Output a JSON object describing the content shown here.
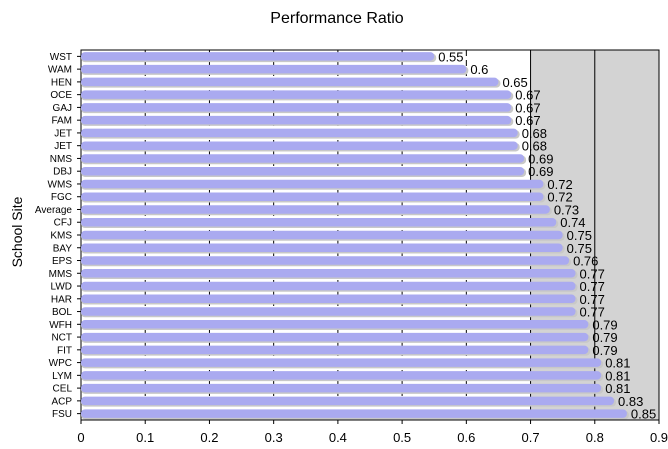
{
  "chart_data": {
    "type": "bar",
    "orientation": "horizontal",
    "title": "Performance Ratio",
    "xlabel": "",
    "ylabel": "School Site",
    "xlim": [
      0,
      0.9
    ],
    "xticks": [
      "0",
      "0.1",
      "0.2",
      "0.3",
      "0.4",
      "0.5",
      "0.6",
      "0.7",
      "0.8",
      "0.9"
    ],
    "highlight_region": [
      0.7,
      0.9
    ],
    "grid": "vertical dashed",
    "categories": [
      "WST",
      "WAM",
      "HEN",
      "OCE",
      "GAJ",
      "FAM",
      "JET",
      "JET",
      "NMS",
      "DBJ",
      "WMS",
      "FGC",
      "Average",
      "CFJ",
      "KMS",
      "BAY",
      "EPS",
      "MMS",
      "LWD",
      "HAR",
      "BOL",
      "WFH",
      "NCT",
      "FIT",
      "WPC",
      "LYM",
      "CEL",
      "ACP",
      "FSU"
    ],
    "values": [
      0.55,
      0.6,
      0.65,
      0.67,
      0.67,
      0.67,
      0.68,
      0.68,
      0.69,
      0.69,
      0.72,
      0.72,
      0.73,
      0.74,
      0.75,
      0.75,
      0.76,
      0.77,
      0.77,
      0.77,
      0.77,
      0.79,
      0.79,
      0.79,
      0.81,
      0.81,
      0.81,
      0.83,
      0.85
    ],
    "data_labels": [
      "0.55",
      "0.6",
      "0.65",
      "0.67",
      "0.67",
      "0.67",
      "0.68",
      "0.68",
      "0.69",
      "0.69",
      "0.72",
      "0.72",
      "0.73",
      "0.74",
      "0.75",
      "0.75",
      "0.76",
      "0.77",
      "0.77",
      "0.77",
      "0.77",
      "0.79",
      "0.79",
      "0.79",
      "0.81",
      "0.81",
      "0.81",
      "0.83",
      "0.85"
    ],
    "colors": {
      "bar_fill": "#aaaaf0",
      "bar_shadow": "#c8c8c8",
      "highlight_region": "#d3d3d3",
      "grid": "#000000"
    }
  }
}
